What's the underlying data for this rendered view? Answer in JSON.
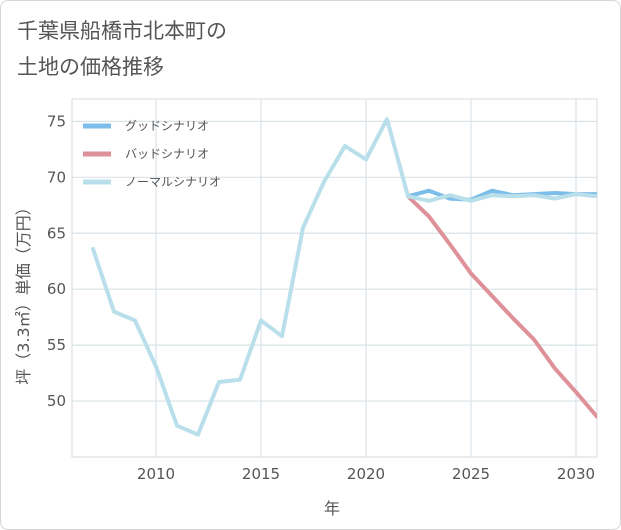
{
  "title": {
    "line1": "千葉県船橋市北本町の",
    "line2": "土地の価格推移"
  },
  "chart_data": {
    "type": "line",
    "title": "千葉県船橋市北本町の土地の価格推移",
    "xlabel": "年",
    "ylabel": "坪（3.3㎡）単価（万円）",
    "xlim": [
      2006,
      2031
    ],
    "ylim": [
      45,
      77
    ],
    "xticks": [
      2010,
      2015,
      2020,
      2025,
      2030
    ],
    "yticks": [
      50,
      55,
      60,
      65,
      70,
      75
    ],
    "grid": true,
    "legend_position": "top-left",
    "series": [
      {
        "name": "グッドシナリオ",
        "color": "#7dbde9",
        "x": [
          2022,
          2023,
          2024,
          2025,
          2026,
          2027,
          2028,
          2029,
          2030,
          2031
        ],
        "y": [
          68.3,
          68.8,
          68.1,
          68.0,
          68.8,
          68.4,
          68.5,
          68.6,
          68.5,
          68.5
        ]
      },
      {
        "name": "バッドシナリオ",
        "color": "#de9198",
        "x": [
          2022,
          2023,
          2024,
          2025,
          2026,
          2027,
          2028,
          2029,
          2030,
          2031
        ],
        "y": [
          68.3,
          66.5,
          64.0,
          61.4,
          59.4,
          57.4,
          55.5,
          52.9,
          50.8,
          48.6
        ]
      },
      {
        "name": "ノーマルシナリオ",
        "color": "#b9dfeb",
        "x": [
          2007,
          2008,
          2009,
          2010,
          2011,
          2012,
          2013,
          2014,
          2015,
          2016,
          2017,
          2018,
          2019,
          2020,
          2021,
          2022,
          2023,
          2024,
          2025,
          2026,
          2027,
          2028,
          2029,
          2030,
          2031
        ],
        "y": [
          63.6,
          58.0,
          57.2,
          53.1,
          47.8,
          47.0,
          51.7,
          51.9,
          57.2,
          55.8,
          65.5,
          69.6,
          72.8,
          71.6,
          75.2,
          68.3,
          67.9,
          68.4,
          67.9,
          68.4,
          68.3,
          68.4,
          68.1,
          68.5,
          68.3
        ]
      }
    ]
  }
}
